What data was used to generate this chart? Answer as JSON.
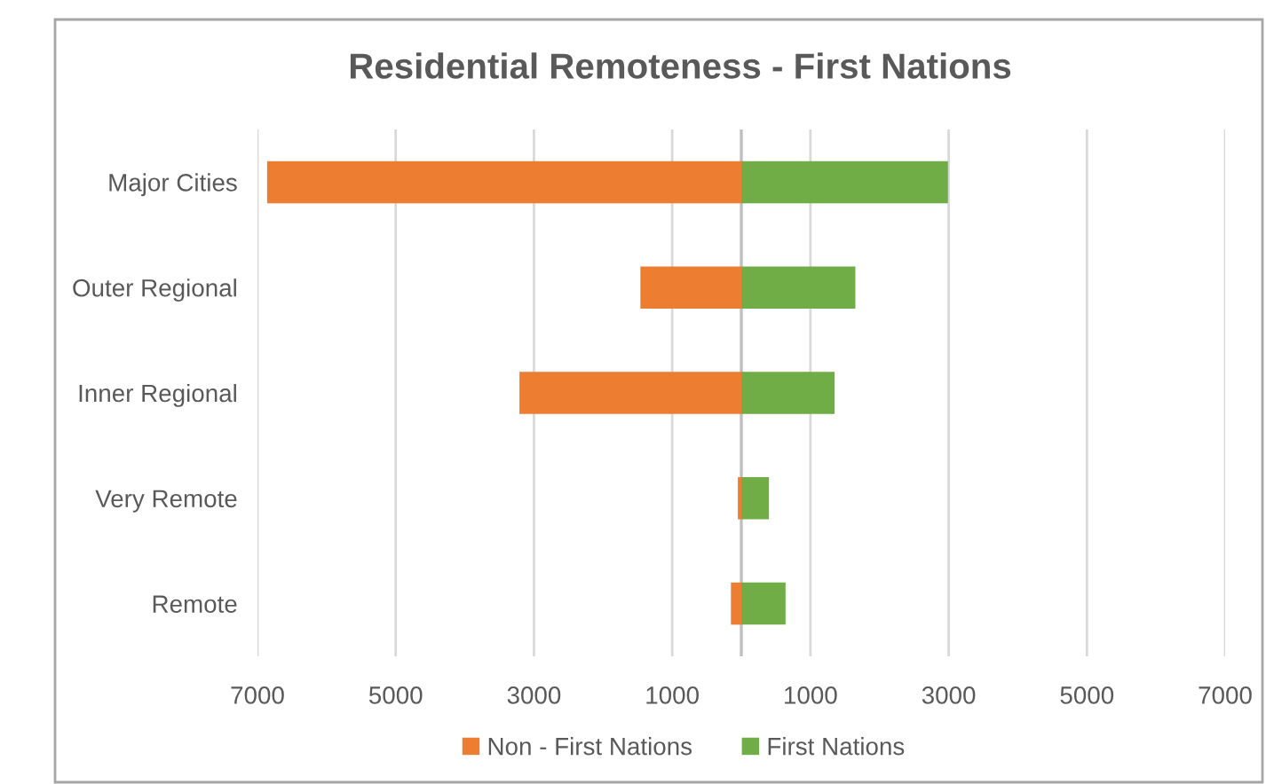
{
  "chart_data": {
    "type": "bar",
    "orientation": "horizontal",
    "stacked": true,
    "title": "Residential Remoteness - First Nations",
    "categories": [
      "Major Cities",
      "Outer Regional",
      "Inner Regional",
      "Very Remote",
      "Remote"
    ],
    "series": [
      {
        "name": "Non - First Nations",
        "color": "#ed7d31",
        "values": [
          -6860,
          -1460,
          -3210,
          -50,
          -150
        ]
      },
      {
        "name": "First Nations",
        "color": "#70ad47",
        "values": [
          2990,
          1650,
          1350,
          400,
          640
        ]
      }
    ],
    "xlim": [
      -7000,
      7000
    ],
    "xticks": [
      {
        "value": -7000,
        "label": "7000"
      },
      {
        "value": -5000,
        "label": "5000"
      },
      {
        "value": -3000,
        "label": "3000"
      },
      {
        "value": -1000,
        "label": "1000"
      },
      1000,
      3000,
      5000,
      7000
    ],
    "ref_lines": [
      {
        "axis": "x",
        "value": 0,
        "color": "#bfbfbf"
      }
    ],
    "grid": "x",
    "legend": "bottom"
  }
}
